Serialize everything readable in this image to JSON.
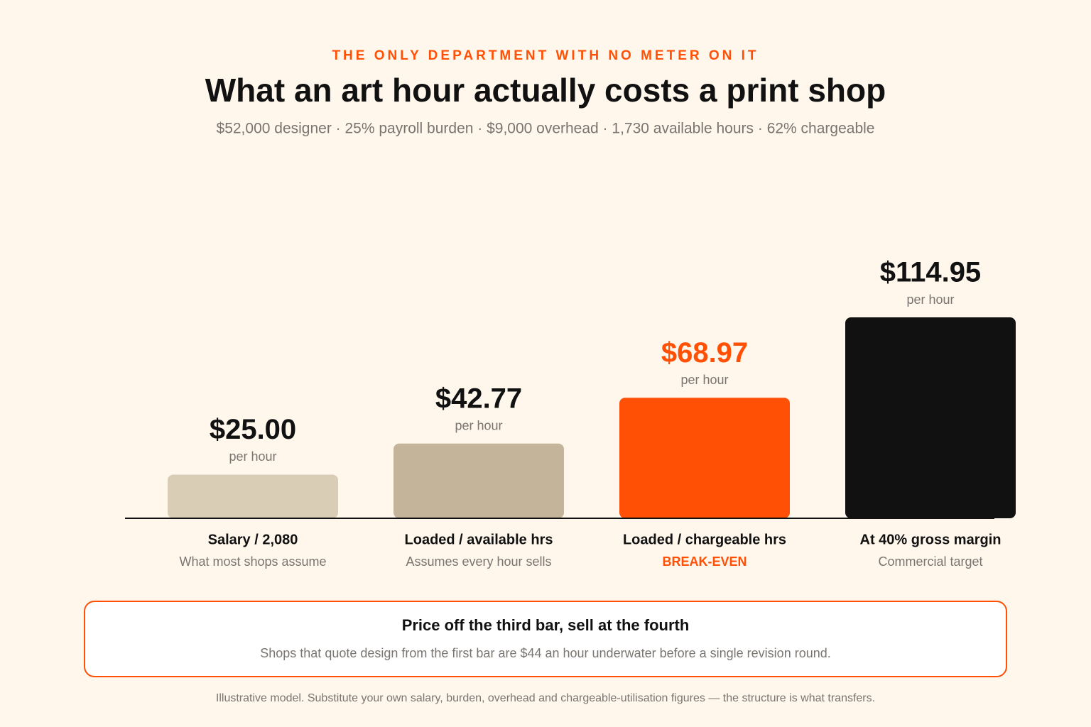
{
  "chart_data": {
    "type": "bar",
    "kicker": "THE ONLY DEPARTMENT WITH NO METER ON IT",
    "title": "What an art hour actually costs a print shop",
    "subtitle": "$52,000 designer · 25% payroll burden · $9,000 overhead · 1,730 available hours · 62% chargeable",
    "categories": [
      "Salary / 2,080",
      "Loaded / available hrs",
      "Loaded / chargeable hrs",
      "At 40% gross margin"
    ],
    "descriptions": [
      "What most shops assume",
      "Assumes every hour sells",
      "BREAK-EVEN",
      "Commercial target"
    ],
    "description_colors": [
      "#7a7570",
      "#7a7570",
      "#ff5005",
      "#7a7570"
    ],
    "values": [
      25.0,
      42.77,
      68.97,
      114.95
    ],
    "value_labels": [
      "$25.00",
      "$42.77",
      "$68.97",
      "$114.95"
    ],
    "value_label_colors": [
      "#111111",
      "#111111",
      "#ff5005",
      "#111111"
    ],
    "unit_label": "per hour",
    "colors": [
      "#d9cdb6",
      "#c4b59a",
      "#ff5005",
      "#111111"
    ]
  },
  "callout": {
    "title": "Price off the third bar, sell at the fourth",
    "text": "Shops that quote design from the first bar are $44 an hour underwater before a single revision round."
  },
  "footnote": "Illustrative model. Substitute your own salary, burden, overhead and chargeable-utilisation figures — the structure is what transfers."
}
